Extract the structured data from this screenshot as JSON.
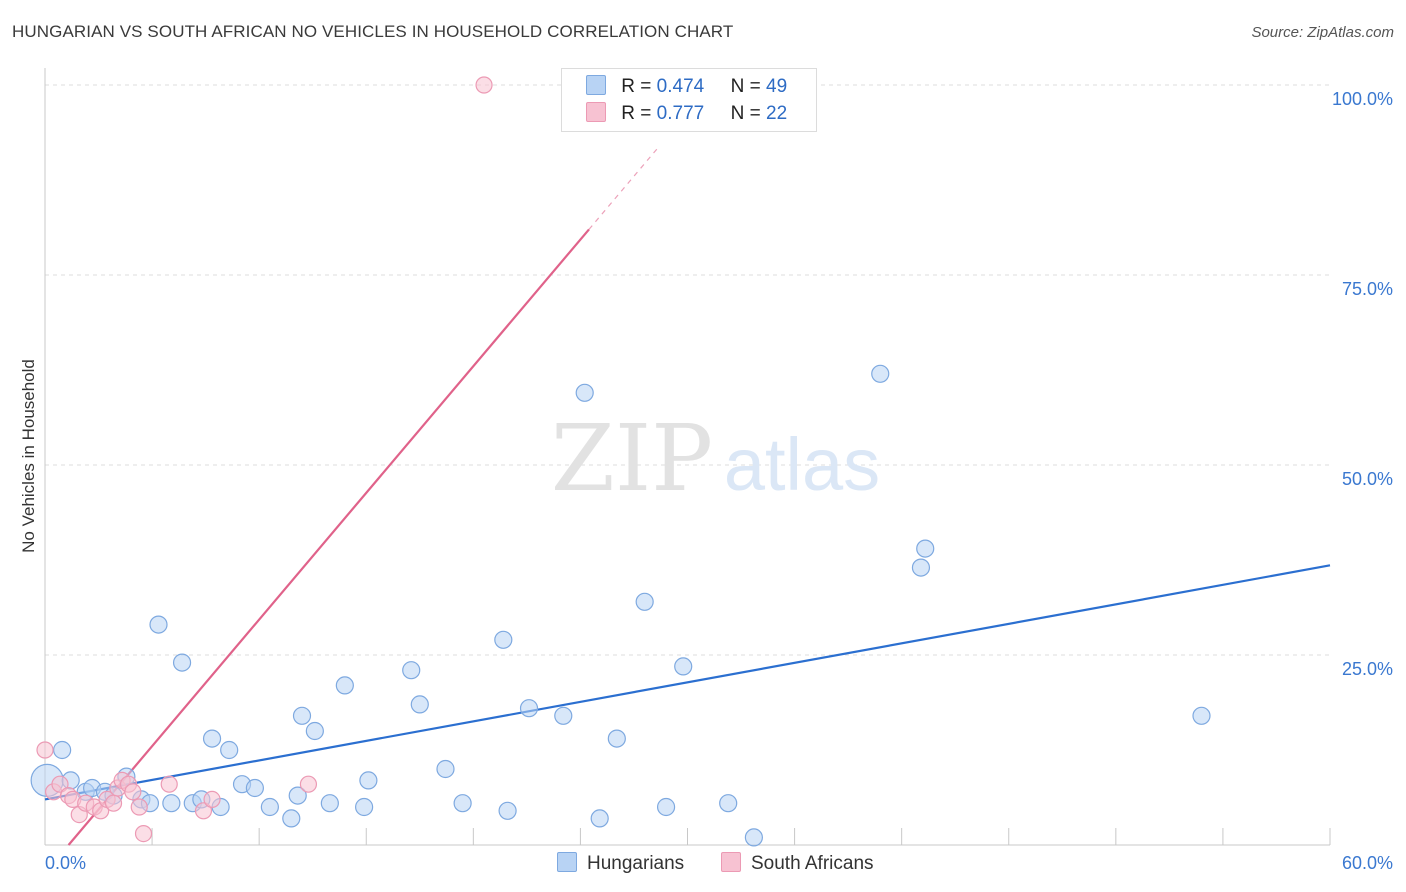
{
  "title": "HUNGARIAN VS SOUTH AFRICAN NO VEHICLES IN HOUSEHOLD CORRELATION CHART",
  "source": "Source: ZipAtlas.com",
  "watermark": {
    "zip": "ZIP",
    "atlas": "atlas"
  },
  "colors": {
    "blue_fill": "#b8d3f4",
    "blue_stroke": "#7ea9e0",
    "blue_line": "#2b6fd0",
    "pink_fill": "#f7c2d2",
    "pink_stroke": "#ec9ab4",
    "pink_line": "#e0628a",
    "axis_text": "#3a78d0",
    "grid": "#dddddd"
  },
  "legend": {
    "rows": [
      {
        "r_label": "R =",
        "r_value": "0.474",
        "n_label": "N =",
        "n_value": "49"
      },
      {
        "r_label": "R =",
        "r_value": "0.777",
        "n_label": "N =",
        "n_value": "22"
      }
    ]
  },
  "bottom_legend": {
    "hungarians": "Hungarians",
    "south_africans": "South Africans"
  },
  "chart_data": {
    "type": "scatter",
    "title": "HUNGARIAN VS SOUTH AFRICAN NO VEHICLES IN HOUSEHOLD CORRELATION CHART",
    "xlabel": "",
    "ylabel": "No Vehicles in Household",
    "xlim": [
      0,
      60
    ],
    "ylim": [
      0,
      100
    ],
    "x_tick_labels": [
      "0.0%",
      "60.0%"
    ],
    "y_ticks": [
      25,
      50,
      75,
      100
    ],
    "y_tick_labels": [
      "25.0%",
      "50.0%",
      "75.0%",
      "100.0%"
    ],
    "grid": true,
    "series": [
      {
        "name": "Hungarians",
        "r": 0.474,
        "n": 49,
        "trend": {
          "x": [
            0,
            60
          ],
          "y": [
            6.0,
            36.8
          ]
        },
        "points": [
          {
            "x": 0.1,
            "y": 8.5,
            "big": true
          },
          {
            "x": 0.8,
            "y": 12.5
          },
          {
            "x": 1.2,
            "y": 8.5
          },
          {
            "x": 1.9,
            "y": 7.0
          },
          {
            "x": 2.2,
            "y": 7.5
          },
          {
            "x": 2.8,
            "y": 7.0
          },
          {
            "x": 3.2,
            "y": 6.5
          },
          {
            "x": 3.8,
            "y": 9.0
          },
          {
            "x": 4.5,
            "y": 6.0
          },
          {
            "x": 4.9,
            "y": 5.5
          },
          {
            "x": 5.3,
            "y": 29.0
          },
          {
            "x": 5.9,
            "y": 5.5
          },
          {
            "x": 6.4,
            "y": 24.0
          },
          {
            "x": 6.9,
            "y": 5.5
          },
          {
            "x": 7.3,
            "y": 6.0
          },
          {
            "x": 7.8,
            "y": 14.0
          },
          {
            "x": 8.2,
            "y": 5.0
          },
          {
            "x": 8.6,
            "y": 12.5
          },
          {
            "x": 9.2,
            "y": 8.0
          },
          {
            "x": 9.8,
            "y": 7.5
          },
          {
            "x": 10.5,
            "y": 5.0
          },
          {
            "x": 11.5,
            "y": 3.5
          },
          {
            "x": 11.8,
            "y": 6.5
          },
          {
            "x": 12.0,
            "y": 17.0
          },
          {
            "x": 12.6,
            "y": 15.0
          },
          {
            "x": 13.3,
            "y": 5.5
          },
          {
            "x": 14.0,
            "y": 21.0
          },
          {
            "x": 14.9,
            "y": 5.0
          },
          {
            "x": 15.1,
            "y": 8.5
          },
          {
            "x": 17.1,
            "y": 23.0
          },
          {
            "x": 17.5,
            "y": 18.5
          },
          {
            "x": 18.7,
            "y": 10.0
          },
          {
            "x": 19.5,
            "y": 5.5
          },
          {
            "x": 21.4,
            "y": 27.0
          },
          {
            "x": 21.6,
            "y": 4.5
          },
          {
            "x": 22.6,
            "y": 18.0
          },
          {
            "x": 24.2,
            "y": 17.0
          },
          {
            "x": 25.2,
            "y": 59.5
          },
          {
            "x": 25.9,
            "y": 3.5
          },
          {
            "x": 26.7,
            "y": 14.0
          },
          {
            "x": 28.0,
            "y": 32.0
          },
          {
            "x": 29.0,
            "y": 5.0
          },
          {
            "x": 29.8,
            "y": 23.5
          },
          {
            "x": 31.9,
            "y": 5.5
          },
          {
            "x": 33.1,
            "y": 1.0
          },
          {
            "x": 39.0,
            "y": 62.0
          },
          {
            "x": 40.9,
            "y": 36.5
          },
          {
            "x": 41.1,
            "y": 39.0
          },
          {
            "x": 54.0,
            "y": 17.0
          }
        ]
      },
      {
        "name": "South Africans",
        "r": 0.777,
        "n": 22,
        "trend": {
          "x": [
            1.1,
            25.4
          ],
          "y": [
            0,
            81.0
          ]
        },
        "trend_dashed": {
          "x": [
            25.4,
            28.7
          ],
          "y": [
            81.0,
            92.0
          ]
        },
        "points": [
          {
            "x": 0.0,
            "y": 12.5
          },
          {
            "x": 0.4,
            "y": 7.0
          },
          {
            "x": 0.7,
            "y": 8.0
          },
          {
            "x": 1.1,
            "y": 6.5
          },
          {
            "x": 1.3,
            "y": 6.0
          },
          {
            "x": 1.6,
            "y": 4.0
          },
          {
            "x": 1.9,
            "y": 5.5
          },
          {
            "x": 2.3,
            "y": 5.0
          },
          {
            "x": 2.6,
            "y": 4.5
          },
          {
            "x": 2.9,
            "y": 6.0
          },
          {
            "x": 3.2,
            "y": 5.5
          },
          {
            "x": 3.4,
            "y": 7.5
          },
          {
            "x": 3.6,
            "y": 8.5
          },
          {
            "x": 3.9,
            "y": 8.0
          },
          {
            "x": 4.1,
            "y": 7.0
          },
          {
            "x": 4.4,
            "y": 5.0
          },
          {
            "x": 4.6,
            "y": 1.5
          },
          {
            "x": 5.8,
            "y": 8.0
          },
          {
            "x": 7.4,
            "y": 4.5
          },
          {
            "x": 7.8,
            "y": 6.0
          },
          {
            "x": 12.3,
            "y": 8.0
          },
          {
            "x": 20.5,
            "y": 100.0
          }
        ]
      }
    ]
  }
}
